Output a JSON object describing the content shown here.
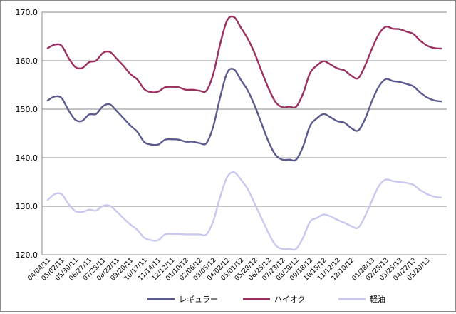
{
  "chart_data": {
    "type": "line",
    "title": "",
    "xlabel": "",
    "ylabel": "",
    "ylim": [
      120,
      170
    ],
    "y_ticks": [
      "120.0",
      "130.0",
      "140.0",
      "150.0",
      "160.0",
      "170.0"
    ],
    "grid": "horizontal",
    "legend_position": "bottom",
    "categories": [
      "04/04/11",
      "04/18/11",
      "05/02/11",
      "05/16/11",
      "05/30/11",
      "06/13/11",
      "06/27/11",
      "07/11/11",
      "07/25/11",
      "08/08/11",
      "08/22/11",
      "09/05/11",
      "09/20/11",
      "10/03/11",
      "10/17/11",
      "10/31/11",
      "11/14/11",
      "11/28/11",
      "12/12/11",
      "12/26/11",
      "01/10/12",
      "01/23/12",
      "02/06/12",
      "02/20/12",
      "03/05/12",
      "03/19/12",
      "04/02/12",
      "04/16/12",
      "05/01/12",
      "05/14/12",
      "05/28/12",
      "06/11/12",
      "06/25/12",
      "07/09/12",
      "07/23/12",
      "08/06/12",
      "08/20/12",
      "09/03/12",
      "09/18/12",
      "10/01/12",
      "10/15/12",
      "10/29/12",
      "11/12/12",
      "11/26/12",
      "12/10/12",
      "12/25/12",
      "01/15/13",
      "01/28/13",
      "02/12/13",
      "02/25/13",
      "03/11/13",
      "03/25/13",
      "04/08/13",
      "04/22/13",
      "05/07/13",
      "05/20/13",
      "06/03/13",
      "06/17/13"
    ],
    "x_tick_labels": [
      "04/04/11",
      "05/02/11",
      "05/30/11",
      "06/27/11",
      "07/25/11",
      "08/22/11",
      "09/20/11",
      "10/17/11",
      "11/14/11",
      "12/12/11",
      "01/10/12",
      "02/06/12",
      "03/05/12",
      "04/02/12",
      "05/01/12",
      "05/28/12",
      "06/25/12",
      "07/23/12",
      "08/20/12",
      "09/18/12",
      "10/15/12",
      "11/12/12",
      "12/10/12",
      "01/28/13",
      "02/25/13",
      "03/25/13",
      "04/22/13",
      "05/20/13"
    ],
    "series": [
      {
        "name": "レギュラー",
        "color": "#5b5a8f",
        "values": [
          151.8,
          152.6,
          152.3,
          149.8,
          147.8,
          147.6,
          148.9,
          149.0,
          150.6,
          151.0,
          149.6,
          148.1,
          146.6,
          145.3,
          143.2,
          142.7,
          142.7,
          143.7,
          143.8,
          143.7,
          143.3,
          143.3,
          143.0,
          143.0,
          146.5,
          152.5,
          157.5,
          158.2,
          156.0,
          153.8,
          150.7,
          147.0,
          143.3,
          140.6,
          139.6,
          139.6,
          139.6,
          142.3,
          146.5,
          148.1,
          149.0,
          148.3,
          147.5,
          147.2,
          146.1,
          145.6,
          148.0,
          151.7,
          154.7,
          156.2,
          155.8,
          155.6,
          155.2,
          154.7,
          153.4,
          152.4,
          151.8,
          151.6
        ]
      },
      {
        "name": "ハイオク",
        "color": "#9b3060",
        "values": [
          162.6,
          163.3,
          163.1,
          160.6,
          158.7,
          158.5,
          159.7,
          160.0,
          161.6,
          161.8,
          160.4,
          158.9,
          157.2,
          156.1,
          154.1,
          153.5,
          153.6,
          154.5,
          154.6,
          154.5,
          154.0,
          154.0,
          153.8,
          153.8,
          157.3,
          163.5,
          168.3,
          169.0,
          166.8,
          164.5,
          161.5,
          157.8,
          154.3,
          151.5,
          150.4,
          150.5,
          150.5,
          153.2,
          157.4,
          159.0,
          159.9,
          159.2,
          158.4,
          158.0,
          156.9,
          156.4,
          159.0,
          162.5,
          165.5,
          167.0,
          166.6,
          166.5,
          166.0,
          165.5,
          164.1,
          163.1,
          162.6,
          162.5
        ]
      },
      {
        "name": "軽油",
        "color": "#c9c8ee",
        "values": [
          131.3,
          132.5,
          132.5,
          130.5,
          129.0,
          128.8,
          129.3,
          129.1,
          130.1,
          130.1,
          128.9,
          127.5,
          126.2,
          125.1,
          123.5,
          123.0,
          123.0,
          124.2,
          124.3,
          124.3,
          124.2,
          124.2,
          124.2,
          124.2,
          127.0,
          132.0,
          136.0,
          137.0,
          135.5,
          133.5,
          130.5,
          127.5,
          124.5,
          122.0,
          121.2,
          121.2,
          121.2,
          123.5,
          126.8,
          127.6,
          128.3,
          127.9,
          127.2,
          126.6,
          125.9,
          125.6,
          128.0,
          131.2,
          134.2,
          135.5,
          135.2,
          135.0,
          134.8,
          134.4,
          133.3,
          132.5,
          132.0,
          131.8
        ]
      }
    ]
  }
}
